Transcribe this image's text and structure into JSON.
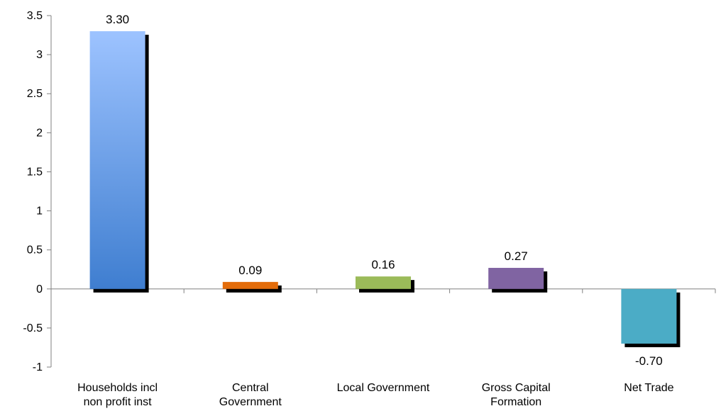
{
  "chart_data": {
    "type": "bar",
    "categories": [
      [
        "Households incl",
        "non profit inst"
      ],
      [
        "Central",
        "Government"
      ],
      [
        "Local Government"
      ],
      [
        "Gross Capital",
        "Formation"
      ],
      [
        "Net Trade"
      ]
    ],
    "values": [
      3.3,
      0.09,
      0.16,
      0.27,
      -0.7
    ],
    "data_labels": [
      "3.30",
      "0.09",
      "0.16",
      "0.27",
      "-0.70"
    ],
    "bar_colors": [
      "#4a86d8",
      "#e36c0a",
      "#9bbb59",
      "#8064a2",
      "#4bacc6"
    ],
    "gradient_first_bar": [
      "#9dc3ff",
      "#3f7ed0"
    ],
    "shadow_color": "#000000",
    "ylim": [
      -1,
      3.5
    ],
    "yticks": [
      -1,
      -0.5,
      0,
      0.5,
      1,
      1.5,
      2,
      2.5,
      3,
      3.5
    ],
    "ytick_labels": [
      "-1",
      "-0.5",
      "0",
      "0.5",
      "1",
      "1.5",
      "2",
      "2.5",
      "3",
      "3.5"
    ],
    "title": "",
    "xlabel": "",
    "ylabel": "",
    "grid": false,
    "legend": "none"
  }
}
